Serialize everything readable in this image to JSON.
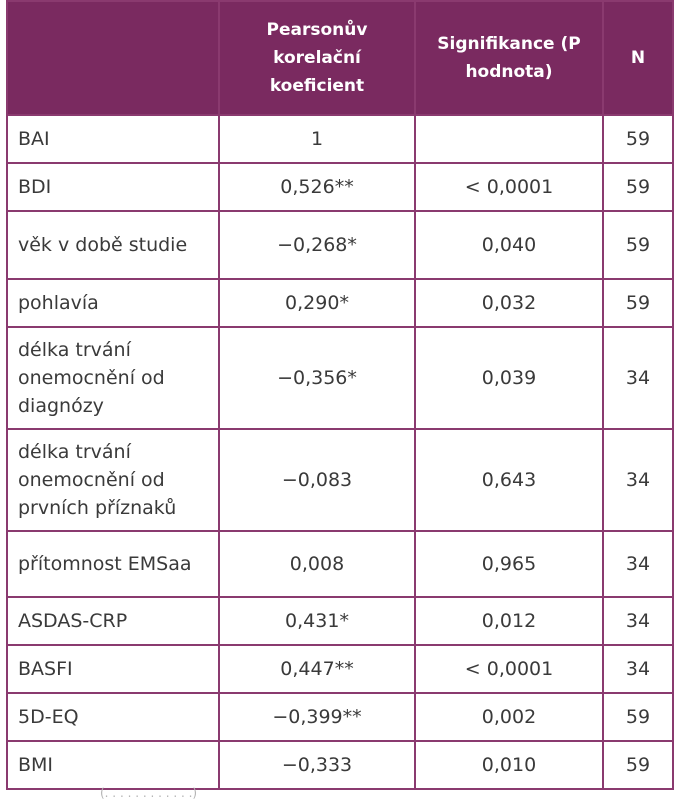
{
  "table": {
    "headers": {
      "label": "",
      "r": "Pearsonův korelační koeficient",
      "p": "Signifikance (P hodnota)",
      "n": "N"
    },
    "rows": [
      {
        "label": "BAI",
        "r": "1",
        "p": "",
        "n": "59"
      },
      {
        "label": "BDI",
        "r": "0,526**",
        "p": "< 0,0001",
        "n": "59"
      },
      {
        "label": "věk v době studie",
        "r": "−0,268*",
        "p": "0,040",
        "n": "59"
      },
      {
        "label": "pohlavía",
        "r": "0,290*",
        "p": "0,032",
        "n": "59"
      },
      {
        "label": "délka trvání onemocnění od diagnózy",
        "r": "−0,356*",
        "p": "0,039",
        "n": "34"
      },
      {
        "label": "délka trvání onemocnění od prvních příznaků",
        "r": "−0,083",
        "p": "0,643",
        "n": "34"
      },
      {
        "label": "přítomnost EMSaa",
        "r": "0,008",
        "p": "0,965",
        "n": "34"
      },
      {
        "label": "ASDAS-CRP",
        "r": "0,431*",
        "p": "0,012",
        "n": "34"
      },
      {
        "label": "BASFI",
        "r": "0,447**",
        "p": "< 0,0001",
        "n": "34"
      },
      {
        "label": "5D-EQ",
        "r": "−0,399**",
        "p": "0,002",
        "n": "59"
      },
      {
        "label": "BMI",
        "r": "−0,333",
        "p": "0,010",
        "n": "59"
      }
    ]
  },
  "footnote": "(. . . . . . . . . . . .)"
}
